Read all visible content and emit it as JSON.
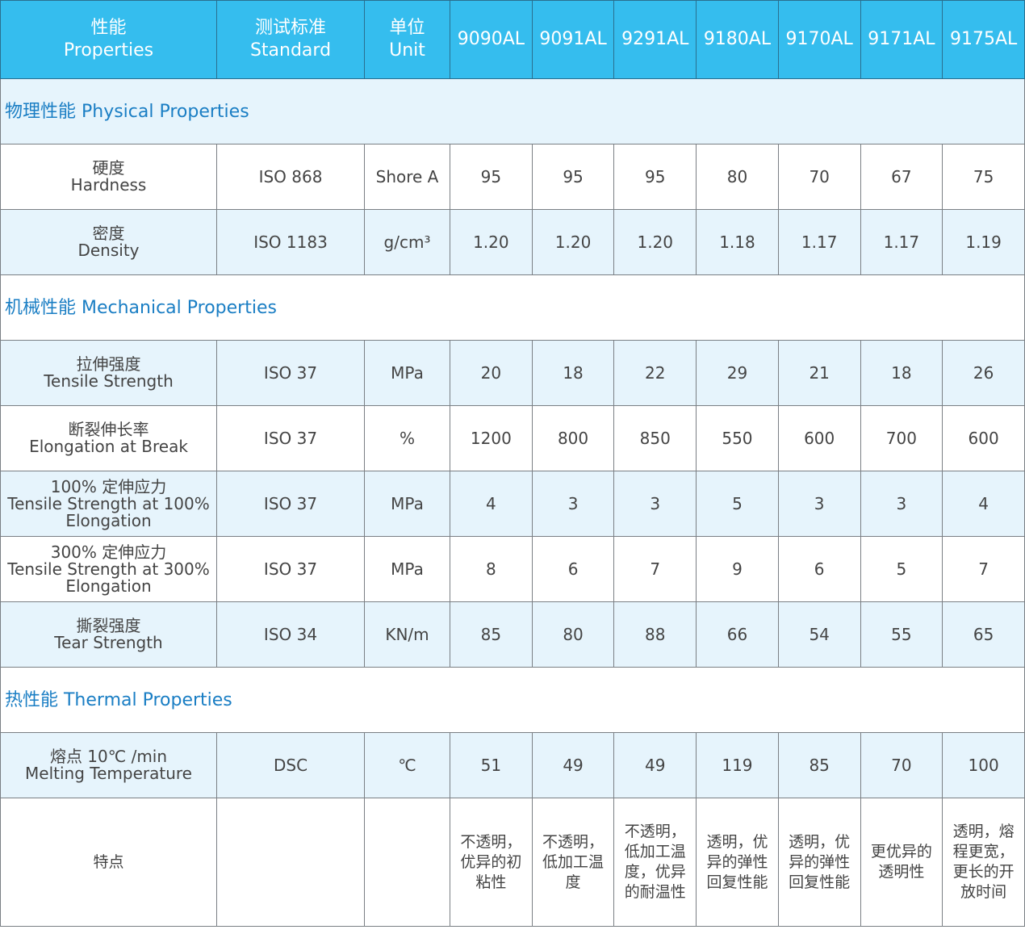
{
  "header": {
    "property": {
      "zh": "性能",
      "en": "Properties"
    },
    "standard": {
      "zh": "测试标准",
      "en": "Standard"
    },
    "unit": {
      "zh": "单位",
      "en": "Unit"
    },
    "grades": [
      "9090AL",
      "9091AL",
      "9291AL",
      "9180AL",
      "9170AL",
      "9171AL",
      "9175AL"
    ]
  },
  "colors": {
    "header": "#35bdee",
    "light_row": "#e6f4fc",
    "section_text": "#1a7ec4"
  },
  "rows": [
    {
      "type": "section",
      "label": "物理性能 Physical Properties",
      "light": true
    },
    {
      "type": "row",
      "zh": "硬度",
      "en": "Hardness",
      "standard": "ISO 868",
      "unit": "Shore A",
      "values": [
        "95",
        "95",
        "95",
        "80",
        "70",
        "67",
        "75"
      ],
      "light": false
    },
    {
      "type": "row",
      "zh": "密度",
      "en": "Density",
      "standard": "ISO 1183",
      "unit": "g/cm³",
      "values": [
        "1.20",
        "1.20",
        "1.20",
        "1.18",
        "1.17",
        "1.17",
        "1.19"
      ],
      "light": true
    },
    {
      "type": "section",
      "label": "机械性能  Mechanical Properties",
      "light": false
    },
    {
      "type": "row",
      "zh": "拉伸强度",
      "en": "Tensile Strength",
      "standard": "ISO 37",
      "unit": "MPa",
      "values": [
        "20",
        "18",
        "22",
        "29",
        "21",
        "18",
        "26"
      ],
      "light": true
    },
    {
      "type": "row",
      "zh": "断裂伸长率",
      "en": "Elongation at Break",
      "standard": "ISO 37",
      "unit": "%",
      "values": [
        "1200",
        "800",
        "850",
        "550",
        "600",
        "700",
        "600"
      ],
      "light": false
    },
    {
      "type": "row",
      "zh": "100% 定伸应力",
      "en": "Tensile Strength at 100% Elongation",
      "standard": "ISO 37",
      "unit": "MPa",
      "values": [
        "4",
        "3",
        "3",
        "5",
        "3",
        "3",
        "4"
      ],
      "light": true
    },
    {
      "type": "row",
      "zh": "300% 定伸应力",
      "en": "Tensile Strength at 300% Elongation",
      "standard": "ISO 37",
      "unit": "MPa",
      "values": [
        "8",
        "6",
        "7",
        "9",
        "6",
        "5",
        "7"
      ],
      "light": false
    },
    {
      "type": "row",
      "zh": "撕裂强度",
      "en": "Tear Strength",
      "standard": "ISO 34",
      "unit": "KN/m",
      "values": [
        "85",
        "80",
        "88",
        "66",
        "54",
        "55",
        "65"
      ],
      "light": true
    },
    {
      "type": "section",
      "label": "热性能  Thermal Properties",
      "light": false
    },
    {
      "type": "row",
      "zh": "熔点 10℃ /min",
      "en": "Melting Temperature",
      "standard": "DSC",
      "unit": "℃",
      "values": [
        "51",
        "49",
        "49",
        "119",
        "85",
        "70",
        "100"
      ],
      "light": true
    },
    {
      "type": "feat",
      "zh": "特点",
      "en": "",
      "standard": "",
      "unit": "",
      "values": [
        "不透明，优异的初粘性",
        "不透明，低加工温度",
        "不透明，低加工温度，优异的耐温性",
        "透明，优异的弹性回复性能",
        "透明，优异的弹性回复性能",
        "更优异的透明性",
        "透明，熔程更宽，更长的开放时间"
      ],
      "light": false
    }
  ]
}
